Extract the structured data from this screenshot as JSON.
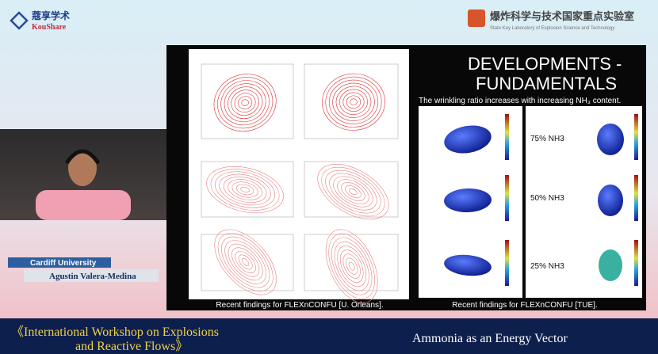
{
  "header": {
    "logo_cn": "蔻享学术",
    "logo_en": "KouShare",
    "lab_cn": "爆炸科学与技术国家重点实验室",
    "lab_en": "State Key Laboratory of Explosion Science and Technology"
  },
  "slide": {
    "title_line1": "DEVELOPMENTS -",
    "title_line2": "FUNDAMENTALS",
    "subtitle": "The wrinkling ratio increases with increasing NH₃ content.",
    "labels": [
      "75% NH3",
      "50% NH3",
      "25% NH3"
    ],
    "captions": [
      "Recent findings for FLEXnCONFU [U. Orleans].",
      "Recent findings for FLEXnCONFU [TUE]."
    ]
  },
  "speaker": {
    "affiliation": "Cardiff University",
    "name": "Agustin Valera-Medina"
  },
  "banner": {
    "event_line1": "《International Workshop on Explosions",
    "event_line2": "and Reactive Flows》",
    "talk": "Ammonia as an Energy Vector"
  }
}
